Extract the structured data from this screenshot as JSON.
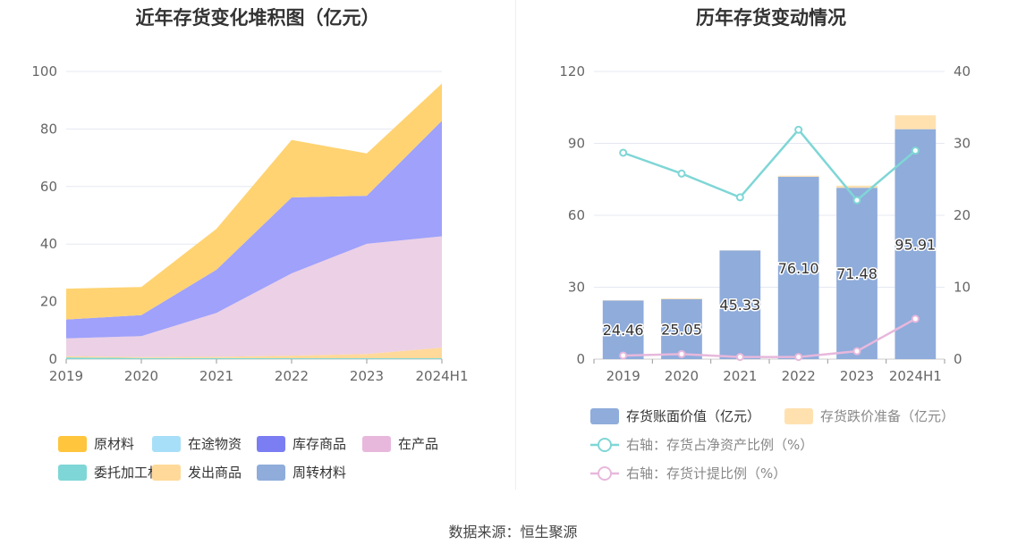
{
  "left_chart": {
    "title": "近年存货变化堆积图（亿元）"
  },
  "right_chart": {
    "title": "历年存货变动情况"
  },
  "source": "数据来源：恒生聚源",
  "chart_data": [
    {
      "type": "area",
      "stacked": true,
      "title": "近年存货变化堆积图（亿元）",
      "categories": [
        "2019",
        "2020",
        "2021",
        "2022",
        "2023",
        "2024H1"
      ],
      "ylim": [
        0,
        100
      ],
      "yticks": [
        0,
        20,
        40,
        60,
        80,
        100
      ],
      "grid": true,
      "legend_position": "bottom",
      "series": [
        {
          "name": "委托加工材料",
          "color": "#7fd6d6",
          "values": [
            0.6,
            0.4,
            0.4,
            0.3,
            0.3,
            0.3
          ]
        },
        {
          "name": "发出商品",
          "color": "#ffd99a",
          "values": [
            0.4,
            0.3,
            0.4,
            0.9,
            1.5,
            3.7
          ]
        },
        {
          "name": "在产品",
          "color": "#ecd0e5",
          "values": [
            6.2,
            7.3,
            15.3,
            28.6,
            38.3,
            38.7
          ]
        },
        {
          "name": "库存商品",
          "color": "#9fa1fa",
          "values": [
            6.6,
            7.3,
            15.0,
            26.4,
            16.7,
            40.2
          ]
        },
        {
          "name": "原材料",
          "color": "#ffd372",
          "values": [
            10.7,
            9.8,
            14.2,
            20.0,
            14.7,
            12.9
          ]
        },
        {
          "name": "在途物资",
          "color": "#a8dff8",
          "values": [
            0,
            0,
            0,
            0,
            0,
            0
          ]
        },
        {
          "name": "周转材料",
          "color": "#8facdb",
          "values": [
            0,
            0,
            0,
            0,
            0,
            0
          ]
        }
      ],
      "legend": [
        {
          "name": "原材料",
          "color": "#ffc53d"
        },
        {
          "name": "在途物资",
          "color": "#a8dff8"
        },
        {
          "name": "库存商品",
          "color": "#7b7ef2"
        },
        {
          "name": "在产品",
          "color": "#e7b8dc"
        },
        {
          "name": "委托加工材料",
          "color": "#7fd6d6"
        },
        {
          "name": "发出商品",
          "color": "#ffd99a"
        },
        {
          "name": "周转材料",
          "color": "#8facdb"
        }
      ]
    },
    {
      "type": "bar",
      "stacked": true,
      "title": "历年存货变动情况",
      "categories": [
        "2019",
        "2020",
        "2021",
        "2022",
        "2023",
        "2024H1"
      ],
      "ylim": [
        0,
        120
      ],
      "yticks": [
        0,
        30,
        60,
        90,
        120
      ],
      "y2lim": [
        0,
        40
      ],
      "y2ticks": [
        0,
        10,
        20,
        30,
        40
      ],
      "grid": true,
      "legend_position": "bottom",
      "series": [
        {
          "name": "存货账面价值（亿元）",
          "color": "#8facdb",
          "axis": "left",
          "values": [
            24.46,
            25.05,
            45.33,
            76.1,
            71.48,
            95.91
          ],
          "labels": [
            "24.46",
            "25.05",
            "45.33",
            "76.10",
            "71.48",
            "95.91"
          ]
        },
        {
          "name": "存货跌价准备（亿元）",
          "color": "#ffe1b0",
          "axis": "left",
          "values": [
            0.1,
            0.3,
            0.05,
            0.4,
            0.9,
            5.8
          ]
        }
      ],
      "lines": [
        {
          "name": "右轴：存货占净资产比例（%）",
          "color": "#7fd6d6",
          "axis": "right",
          "values": [
            28.7,
            25.8,
            22.5,
            31.9,
            22.1,
            29.0
          ]
        },
        {
          "name": "右轴：存货计提比例（%）",
          "color": "#e7b8dc",
          "axis": "right",
          "values": [
            0.5,
            0.7,
            0.3,
            0.3,
            1.1,
            5.6
          ]
        }
      ]
    }
  ]
}
